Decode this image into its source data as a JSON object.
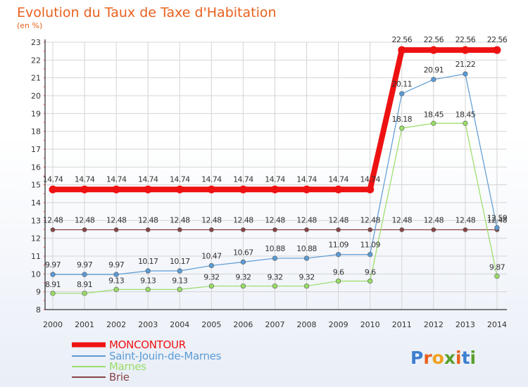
{
  "chart_data": {
    "type": "line",
    "title": "Evolution du Taux de Taxe d'Habitation",
    "subtitle": "(en %)",
    "xlabel": "",
    "ylabel": "",
    "categories": [
      "2000",
      "2001",
      "2002",
      "2003",
      "2004",
      "2005",
      "2006",
      "2007",
      "2008",
      "2009",
      "2010",
      "2011",
      "2012",
      "2013",
      "2014"
    ],
    "ylim": [
      8,
      23
    ],
    "yticks": [
      "8",
      "9",
      "10",
      "11",
      "12",
      "13",
      "14",
      "15",
      "16",
      "17",
      "18",
      "19",
      "20",
      "21",
      "22",
      "23"
    ],
    "grid": true,
    "legend_position": "bottom-left",
    "series": [
      {
        "name": "MONCONTOUR",
        "color": "#ee1111",
        "values": [
          14.74,
          14.74,
          14.74,
          14.74,
          14.74,
          14.74,
          14.74,
          14.74,
          14.74,
          14.74,
          14.74,
          22.56,
          22.56,
          22.56,
          22.56
        ],
        "labels": [
          "14.74",
          "14.74",
          "14.74",
          "14.74",
          "14.74",
          "14.74",
          "14.74",
          "14.74",
          "14.74",
          "14.74",
          "14.74",
          "22.56",
          "22.56",
          "22.56",
          "22.56"
        ]
      },
      {
        "name": "Saint-Jouin-de-Marnes",
        "color": "#5b9bd5",
        "values": [
          9.97,
          9.97,
          9.97,
          10.17,
          10.17,
          10.47,
          10.67,
          10.88,
          10.88,
          11.09,
          11.09,
          20.11,
          20.91,
          21.22,
          12.59
        ],
        "labels": [
          "9.97",
          "9.97",
          "9.97",
          "10.17",
          "10.17",
          "10.47",
          "10.67",
          "10.88",
          "10.88",
          "11.09",
          "11.09",
          "20.11",
          "20.91",
          "21.22",
          "12.59"
        ]
      },
      {
        "name": "Marnes",
        "color": "#99dd66",
        "values": [
          8.91,
          8.91,
          9.13,
          9.13,
          9.13,
          9.32,
          9.32,
          9.32,
          9.32,
          9.6,
          9.6,
          18.18,
          18.45,
          18.45,
          9.87
        ],
        "labels": [
          "8.91",
          "8.91",
          "9.13",
          "9.13",
          "9.13",
          "9.32",
          "9.32",
          "9.32",
          "9.32",
          "9.6",
          "9.6",
          "18.18",
          "18.45",
          "18.45",
          "9.87"
        ]
      },
      {
        "name": "Brie",
        "color": "#884444",
        "values": [
          12.48,
          12.48,
          12.48,
          12.48,
          12.48,
          12.48,
          12.48,
          12.48,
          12.48,
          12.48,
          12.48,
          12.48,
          12.48,
          12.48,
          12.48
        ],
        "labels": [
          "12.48",
          "12.48",
          "12.48",
          "12.48",
          "12.48",
          "12.48",
          "12.48",
          "12.48",
          "12.48",
          "12.48",
          "12.48",
          "12.48",
          "12.48",
          "12.48",
          "12.48"
        ]
      }
    ]
  },
  "logo": {
    "text": "Proxiti",
    "letter_colors": [
      "#3b7fd0",
      "#e8601c",
      "#f0a020",
      "#5aa02c",
      "#e8601c",
      "#3b7fd0",
      "#5aa02c"
    ]
  }
}
